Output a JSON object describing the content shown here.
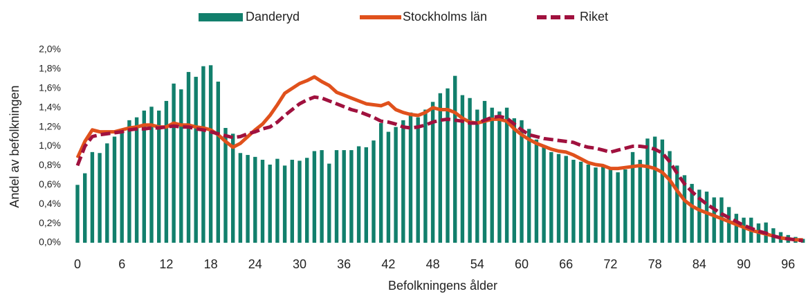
{
  "chart_data": {
    "type": "bar-line",
    "x_label": "Befolkningens ålder",
    "y_label": "Andel av befolkningen",
    "categories": [
      0,
      null,
      null,
      null,
      null,
      null,
      6,
      null,
      null,
      null,
      null,
      null,
      12,
      null,
      null,
      null,
      null,
      null,
      18,
      null,
      null,
      null,
      null,
      null,
      24,
      null,
      null,
      null,
      null,
      null,
      30,
      null,
      null,
      null,
      null,
      null,
      36,
      null,
      null,
      null,
      null,
      null,
      42,
      null,
      null,
      null,
      null,
      null,
      48,
      null,
      null,
      null,
      null,
      null,
      54,
      null,
      null,
      null,
      null,
      null,
      60,
      null,
      null,
      null,
      null,
      null,
      66,
      null,
      null,
      null,
      null,
      null,
      72,
      null,
      null,
      null,
      null,
      null,
      78,
      null,
      null,
      null,
      null,
      null,
      84,
      null,
      null,
      null,
      null,
      null,
      90,
      null,
      null,
      null,
      null,
      null,
      96,
      null,
      null
    ],
    "series": [
      {
        "name": "Danderyd",
        "kind": "bar",
        "color": "#127f6c",
        "values": [
          0.6,
          0.72,
          0.94,
          0.93,
          1.03,
          1.1,
          1.17,
          1.27,
          1.3,
          1.37,
          1.41,
          1.37,
          1.47,
          1.65,
          1.59,
          1.77,
          1.72,
          1.83,
          1.84,
          1.67,
          1.19,
          1.13,
          0.93,
          0.91,
          0.89,
          0.86,
          0.81,
          0.87,
          0.8,
          0.86,
          0.85,
          0.88,
          0.95,
          0.96,
          0.82,
          0.96,
          0.96,
          0.96,
          1.0,
          0.99,
          1.06,
          1.24,
          1.15,
          1.2,
          1.27,
          1.35,
          1.3,
          1.38,
          1.46,
          1.55,
          1.6,
          1.73,
          1.53,
          1.5,
          1.38,
          1.47,
          1.4,
          1.36,
          1.4,
          1.29,
          1.27,
          1.18,
          1.07,
          0.99,
          0.94,
          0.92,
          0.9,
          0.86,
          0.84,
          0.81,
          0.78,
          0.8,
          0.78,
          0.73,
          0.76,
          0.94,
          0.86,
          1.08,
          1.1,
          1.07,
          0.95,
          0.8,
          0.7,
          0.61,
          0.55,
          0.53,
          0.47,
          0.47,
          0.37,
          0.3,
          0.26,
          0.26,
          0.2,
          0.21,
          0.15,
          0.11,
          0.08,
          0.06,
          0.04
        ]
      },
      {
        "name": "Stockholms län",
        "kind": "line",
        "color": "#e0511c",
        "values": [
          0.88,
          1.05,
          1.17,
          1.15,
          1.15,
          1.15,
          1.17,
          1.19,
          1.2,
          1.22,
          1.22,
          1.2,
          1.2,
          1.24,
          1.22,
          1.22,
          1.2,
          1.19,
          1.17,
          1.12,
          1.05,
          0.99,
          1.03,
          1.1,
          1.17,
          1.23,
          1.32,
          1.43,
          1.55,
          1.6,
          1.65,
          1.68,
          1.72,
          1.67,
          1.63,
          1.56,
          1.53,
          1.5,
          1.47,
          1.44,
          1.43,
          1.42,
          1.45,
          1.38,
          1.35,
          1.33,
          1.32,
          1.35,
          1.4,
          1.38,
          1.38,
          1.35,
          1.29,
          1.25,
          1.24,
          1.26,
          1.28,
          1.28,
          1.26,
          1.18,
          1.12,
          1.07,
          1.03,
          1.0,
          0.97,
          0.95,
          0.94,
          0.91,
          0.87,
          0.83,
          0.81,
          0.8,
          0.77,
          0.77,
          0.78,
          0.79,
          0.8,
          0.79,
          0.77,
          0.73,
          0.65,
          0.54,
          0.44,
          0.38,
          0.34,
          0.31,
          0.28,
          0.25,
          0.22,
          0.19,
          0.16,
          0.13,
          0.11,
          0.09,
          0.07,
          0.05,
          0.04,
          0.03,
          0.03
        ]
      },
      {
        "name": "Riket",
        "kind": "dashed-line",
        "color": "#a0113e",
        "values": [
          0.8,
          1.0,
          1.1,
          1.12,
          1.13,
          1.14,
          1.15,
          1.17,
          1.18,
          1.18,
          1.19,
          1.19,
          1.2,
          1.21,
          1.2,
          1.2,
          1.18,
          1.17,
          1.15,
          1.13,
          1.11,
          1.09,
          1.1,
          1.13,
          1.15,
          1.18,
          1.2,
          1.25,
          1.32,
          1.38,
          1.44,
          1.48,
          1.51,
          1.5,
          1.47,
          1.44,
          1.41,
          1.38,
          1.36,
          1.33,
          1.3,
          1.26,
          1.25,
          1.23,
          1.2,
          1.19,
          1.2,
          1.22,
          1.25,
          1.27,
          1.28,
          1.27,
          1.26,
          1.24,
          1.24,
          1.27,
          1.3,
          1.31,
          1.29,
          1.23,
          1.17,
          1.12,
          1.1,
          1.08,
          1.07,
          1.06,
          1.05,
          1.04,
          1.01,
          0.99,
          0.98,
          0.96,
          0.94,
          0.96,
          0.98,
          1.0,
          1.0,
          0.99,
          0.97,
          0.93,
          0.84,
          0.72,
          0.61,
          0.53,
          0.46,
          0.4,
          0.35,
          0.3,
          0.26,
          0.22,
          0.18,
          0.15,
          0.12,
          0.1,
          0.07,
          0.05,
          0.04,
          0.03,
          0.02
        ]
      }
    ],
    "ylim": [
      0,
      2.0
    ],
    "yticks": [
      {
        "value": 0,
        "label": "0,0%"
      },
      {
        "value": 0.2,
        "label": "0,2%"
      },
      {
        "value": 0.4,
        "label": "0,4%"
      },
      {
        "value": 0.6,
        "label": "0,6%"
      },
      {
        "value": 0.8,
        "label": "0,8%"
      },
      {
        "value": 1.0,
        "label": "1,0%"
      },
      {
        "value": 1.2,
        "label": "1,2%"
      },
      {
        "value": 1.4,
        "label": "1,4%"
      },
      {
        "value": 1.6,
        "label": "1,6%"
      },
      {
        "value": 1.8,
        "label": "1,8%"
      },
      {
        "value": 2.0,
        "label": "2,0%"
      }
    ],
    "grid": false,
    "legend": "top"
  }
}
